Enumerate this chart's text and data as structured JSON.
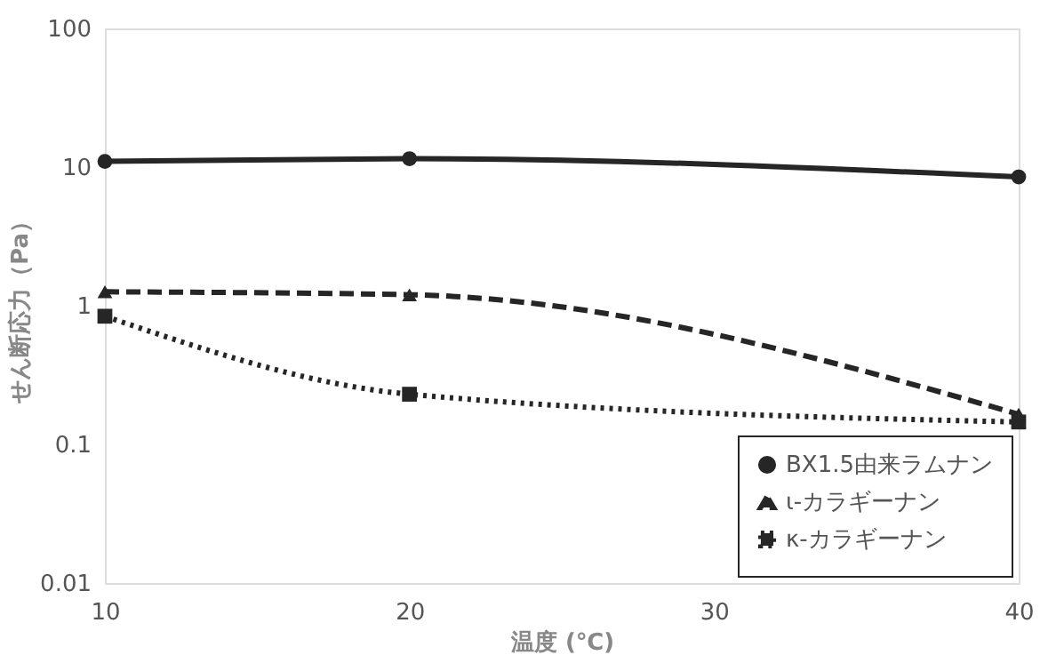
{
  "chart_data": {
    "type": "line",
    "xlabel": "温度 (℃)",
    "ylabel": "せん断応力（Pa）",
    "log": "y",
    "x": [
      10,
      20,
      40
    ],
    "xlim": [
      10,
      40
    ],
    "xticks": [
      10,
      20,
      30,
      40
    ],
    "ylim": [
      0.01,
      100
    ],
    "yticks": [
      0.01,
      0.1,
      1,
      10,
      100
    ],
    "grid": false,
    "legend": "bottom right",
    "series": [
      {
        "name": "BX1.5由来ラムナン",
        "color": "#262626",
        "marker": "circle",
        "line_style": "solid",
        "values": [
          11,
          11.5,
          8.5
        ]
      },
      {
        "name": "ι-カラギーナン",
        "color": "#262626",
        "marker": "triangle",
        "line_style": "dashed",
        "values": [
          1.26,
          1.2,
          0.165
        ]
      },
      {
        "name": "κ-カラギーナン",
        "color": "#262626",
        "marker": "square",
        "line_style": "dotted",
        "values": [
          0.84,
          0.23,
          0.145
        ]
      }
    ]
  }
}
